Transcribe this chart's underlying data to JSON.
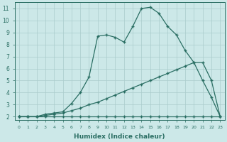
{
  "xlabel": "Humidex (Indice chaleur)",
  "background_color": "#cce8e8",
  "grid_color": "#aacccc",
  "line_color": "#2a6e63",
  "xlim": [
    -0.5,
    23.5
  ],
  "ylim": [
    1.7,
    11.5
  ],
  "xticks": [
    0,
    1,
    2,
    3,
    4,
    5,
    6,
    7,
    8,
    9,
    10,
    11,
    12,
    13,
    14,
    15,
    16,
    17,
    18,
    19,
    20,
    21,
    22,
    23
  ],
  "yticks": [
    2,
    3,
    4,
    5,
    6,
    7,
    8,
    9,
    10,
    11
  ],
  "line1_x": [
    0,
    1,
    2,
    3,
    4,
    5,
    6,
    7,
    8,
    9,
    10,
    11,
    12,
    13,
    14,
    15,
    16,
    17,
    18,
    19,
    20,
    21,
    22,
    23
  ],
  "line1_y": [
    2.0,
    2.0,
    2.0,
    2.0,
    2.0,
    2.0,
    2.0,
    2.0,
    2.0,
    2.0,
    2.0,
    2.0,
    2.0,
    2.0,
    2.0,
    2.0,
    2.0,
    2.0,
    2.0,
    2.0,
    2.0,
    2.0,
    2.0,
    2.0
  ],
  "line2_x": [
    0,
    1,
    2,
    3,
    4,
    5,
    6,
    7,
    8,
    9,
    10,
    11,
    12,
    13,
    14,
    15,
    16,
    17,
    18,
    19,
    20,
    21,
    22,
    23
  ],
  "line2_y": [
    2.0,
    2.0,
    2.0,
    2.1,
    2.2,
    2.3,
    2.5,
    2.7,
    3.0,
    3.2,
    3.5,
    3.8,
    4.1,
    4.4,
    4.7,
    5.0,
    5.3,
    5.6,
    5.9,
    6.2,
    6.5,
    6.5,
    5.0,
    2.0
  ],
  "line3_x": [
    0,
    1,
    2,
    3,
    4,
    5,
    6,
    7,
    8,
    9,
    10,
    11,
    12,
    13,
    14,
    15,
    16,
    17,
    18,
    19,
    20,
    21,
    22,
    23
  ],
  "line3_y": [
    2.0,
    2.0,
    2.0,
    2.2,
    2.3,
    2.4,
    3.1,
    4.0,
    5.3,
    8.7,
    8.8,
    8.6,
    8.2,
    9.5,
    11.0,
    11.1,
    10.6,
    9.5,
    8.8,
    7.5,
    6.5,
    5.0,
    3.6,
    2.0
  ]
}
